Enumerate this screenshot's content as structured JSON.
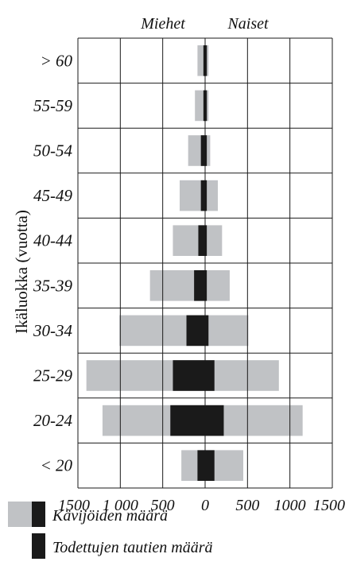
{
  "chart_data": {
    "type": "bar",
    "orientation": "horizontal-population-pyramid",
    "left_group_label": "Miehet",
    "right_group_label": "Naiset",
    "ylabel": "Ikäluokka (vuotta)",
    "xlim": [
      -1500,
      1500
    ],
    "x_ticks": [
      "1500",
      "1 000",
      "500",
      "0",
      "500",
      "1000",
      "1500"
    ],
    "categories": [
      "> 60",
      "55-59",
      "50-54",
      "45-49",
      "40-44",
      "35-39",
      "30-34",
      "25-29",
      "20-24",
      "< 20"
    ],
    "series": [
      {
        "name": "Kävijöiden määrä",
        "color": "#c0c2c5",
        "men": [
          90,
          120,
          200,
          300,
          380,
          650,
          1010,
          1400,
          1210,
          280
        ],
        "women": [
          40,
          40,
          60,
          150,
          200,
          290,
          510,
          870,
          1150,
          450
        ]
      },
      {
        "name": "Todettujen tautien määrä",
        "color": "#1a1a1a",
        "men": [
          20,
          20,
          50,
          50,
          80,
          130,
          220,
          380,
          410,
          90
        ],
        "women": [
          20,
          20,
          20,
          20,
          20,
          20,
          40,
          110,
          220,
          110
        ]
      }
    ],
    "grid": true,
    "legend_position": "bottom-left"
  },
  "legend": {
    "visitors_label": "Kävijöiden määrä",
    "diseases_label": "Todettujen tautien määrä"
  }
}
